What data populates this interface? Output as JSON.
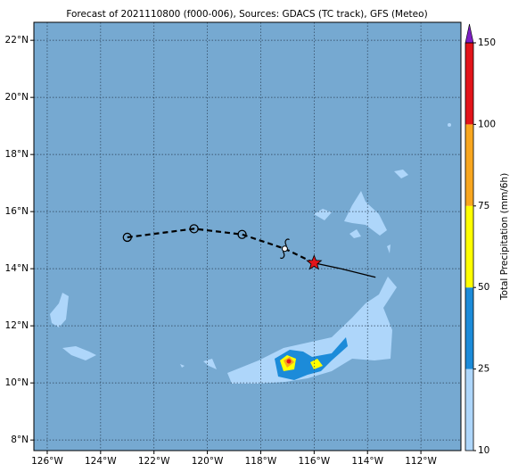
{
  "map": {
    "title": "Forecast of 2021110800 (f000-006), Sources: GDACS (TC track), GFS (Meteo)",
    "xlim": [
      -126.5,
      -110.5
    ],
    "ylim": [
      7.63,
      22.63
    ],
    "xticks": [
      {
        "value": -126,
        "label": "126°W"
      },
      {
        "value": -124,
        "label": "124°W"
      },
      {
        "value": -122,
        "label": "122°W"
      },
      {
        "value": -120,
        "label": "120°W"
      },
      {
        "value": -118,
        "label": "118°W"
      },
      {
        "value": -116,
        "label": "116°W"
      },
      {
        "value": -114,
        "label": "114°W"
      },
      {
        "value": -112,
        "label": "112°W"
      }
    ],
    "yticks": [
      {
        "value": 8,
        "label": "8°N"
      },
      {
        "value": 10,
        "label": "10°N"
      },
      {
        "value": 12,
        "label": "12°N"
      },
      {
        "value": 14,
        "label": "14°N"
      },
      {
        "value": 16,
        "label": "16°N"
      },
      {
        "value": 18,
        "label": "18°N"
      },
      {
        "value": 20,
        "label": "20°N"
      },
      {
        "value": 22,
        "label": "22°N"
      }
    ],
    "forecast_track": {
      "lon": [
        -123,
        -120.5,
        -118.7,
        -117.1,
        -116
      ],
      "lat": [
        15.1,
        15.4,
        15.2,
        14.7,
        14.2
      ]
    },
    "past_track": {
      "lon": [
        -116,
        -115,
        -113.7
      ],
      "lat": [
        14.2,
        14.0,
        13.7
      ]
    },
    "colorbar": {
      "label": "Total Precipitation (mm/6h)",
      "ticks": [
        10,
        25,
        50,
        75,
        100,
        150
      ],
      "colors": [
        "#aed6fa",
        "#1c8bd9",
        "#ffff00",
        "#f8a61e",
        "#e2141a"
      ],
      "extend_color": "#7e1fc4"
    }
  }
}
